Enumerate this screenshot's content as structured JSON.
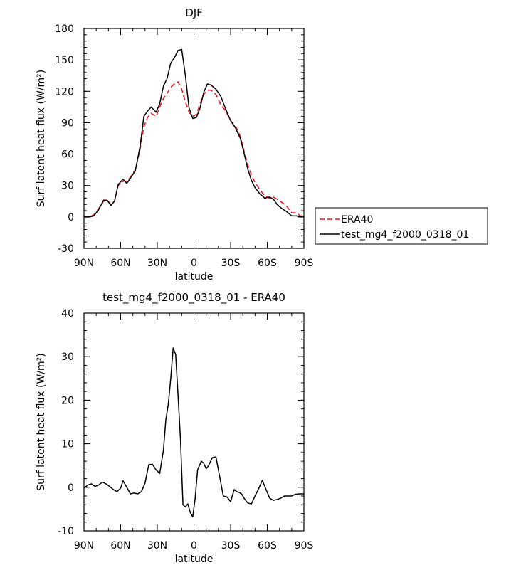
{
  "chart_data": [
    {
      "type": "line",
      "title": "DJF",
      "xlabel": "latitude",
      "ylabel": "Surf latent heat flux (W/m²)",
      "xlim": [
        90,
        -90
      ],
      "ylim": [
        -30,
        180
      ],
      "xticks": [
        {
          "v": 90,
          "l": "90N"
        },
        {
          "v": 60,
          "l": "60N"
        },
        {
          "v": 30,
          "l": "30N"
        },
        {
          "v": 0,
          "l": "0"
        },
        {
          "v": -30,
          "l": "30S"
        },
        {
          "v": -60,
          "l": "60S"
        },
        {
          "v": -90,
          "l": "90S"
        }
      ],
      "yticks": [
        -30,
        0,
        30,
        60,
        90,
        120,
        150,
        180
      ],
      "legend": [
        {
          "name": "ERA40",
          "series": 0
        },
        {
          "name": "test_mg4_f2000_0318_01",
          "series": 1
        }
      ],
      "series": [
        {
          "name": "ERA40",
          "color": "#e8141c",
          "dash": "7,4",
          "x": [
            90,
            86,
            82,
            78,
            74,
            71,
            68,
            65,
            62,
            58,
            55,
            52,
            48,
            44,
            41,
            38,
            35,
            31,
            28,
            25,
            22,
            19,
            16,
            13,
            10,
            7,
            4,
            1,
            -2,
            -5,
            -8,
            -11,
            -14,
            -18,
            -22,
            -26,
            -30,
            -34,
            -38,
            -41,
            -44,
            -47,
            -50,
            -54,
            -58,
            -62,
            -65,
            -68,
            -72,
            -76,
            -80,
            -84,
            -87,
            -90
          ],
          "y": [
            0,
            0,
            2,
            8,
            15,
            16,
            12,
            15,
            30,
            34,
            34,
            38,
            45,
            65,
            86,
            95,
            99,
            96,
            105,
            113,
            118,
            124,
            127,
            129,
            122,
            110,
            100,
            96,
            98,
            108,
            117,
            121,
            121,
            117,
            107,
            101,
            92,
            87,
            77,
            63,
            50,
            40,
            33,
            26,
            20,
            18,
            19,
            17,
            14,
            10,
            4,
            4,
            1,
            1
          ]
        },
        {
          "name": "test_mg4_f2000_0318_01",
          "color": "#000000",
          "dash": "",
          "x": [
            90,
            86,
            82,
            78,
            74,
            71,
            68,
            65,
            62,
            58,
            55,
            52,
            48,
            44,
            41,
            38,
            35,
            31,
            28,
            25,
            22,
            19,
            16,
            13,
            10,
            7,
            4,
            1,
            -2,
            -5,
            -8,
            -11,
            -14,
            -18,
            -22,
            -26,
            -30,
            -34,
            -38,
            -41,
            -44,
            -47,
            -50,
            -54,
            -58,
            -62,
            -65,
            -68,
            -72,
            -76,
            -80,
            -84,
            -87,
            -90
          ],
          "y": [
            0,
            0,
            1,
            7,
            16,
            16,
            11,
            15,
            31,
            36,
            32,
            37,
            44,
            68,
            96,
            101,
            105,
            100,
            108,
            125,
            132,
            147,
            152,
            159,
            160,
            135,
            104,
            94,
            95,
            104,
            119,
            127,
            126,
            122,
            115,
            103,
            92,
            85,
            75,
            61,
            46,
            35,
            28,
            22,
            18,
            19,
            17,
            12,
            8,
            5,
            1,
            1,
            0,
            0
          ]
        }
      ]
    },
    {
      "type": "line",
      "title": "test_mg4_f2000_0318_01 - ERA40",
      "xlabel": "latitude",
      "ylabel": "Surf latent heat flux (W/m²)",
      "xlim": [
        90,
        -90
      ],
      "ylim": [
        -10,
        40
      ],
      "xticks": [
        {
          "v": 90,
          "l": "90N"
        },
        {
          "v": 60,
          "l": "60N"
        },
        {
          "v": 30,
          "l": "30N"
        },
        {
          "v": 0,
          "l": "0"
        },
        {
          "v": -30,
          "l": "30S"
        },
        {
          "v": -60,
          "l": "60S"
        },
        {
          "v": -90,
          "l": "90S"
        }
      ],
      "yticks": [
        -10,
        0,
        10,
        20,
        30,
        40
      ],
      "legend": [],
      "series": [
        {
          "name": "",
          "color": "#000000",
          "dash": "",
          "x": [
            90,
            87,
            84,
            81,
            78,
            75,
            72,
            69,
            66,
            63,
            60,
            58,
            55,
            52,
            49,
            46,
            43,
            40,
            37,
            34,
            31,
            28,
            25,
            23,
            21,
            19,
            17,
            15,
            13,
            11,
            9,
            7,
            5,
            3,
            1,
            -1,
            -3,
            -6,
            -8,
            -10,
            -12,
            -15,
            -18,
            -21,
            -24,
            -27,
            -30,
            -33,
            -35,
            -37,
            -39,
            -41,
            -44,
            -47,
            -50,
            -53,
            -56,
            -59,
            -62,
            -65,
            -68,
            -71,
            -74,
            -77,
            -80,
            -83,
            -86,
            -90
          ],
          "y": [
            -0.2,
            0.5,
            0.8,
            0.2,
            0.5,
            1.2,
            0.8,
            0.2,
            -0.5,
            -1.0,
            -0.2,
            1.5,
            0.0,
            -1.5,
            -1.3,
            -1.5,
            -1.0,
            1.0,
            5.2,
            5.3,
            4.0,
            3.2,
            8.5,
            15.5,
            19.0,
            25.0,
            32.0,
            30.5,
            21.0,
            11.0,
            -4.0,
            -4.5,
            -3.8,
            -5.8,
            -6.8,
            -2.5,
            4.0,
            6.0,
            5.5,
            4.3,
            5.0,
            6.8,
            7.0,
            2.5,
            -2.0,
            -2.2,
            -3.3,
            -0.5,
            -1.0,
            -1.2,
            -1.5,
            -2.5,
            -3.6,
            -3.8,
            -2.0,
            -0.3,
            1.6,
            -0.5,
            -2.5,
            -3.0,
            -2.8,
            -2.5,
            -2.0,
            -2.0,
            -2.0,
            -1.6,
            -1.5,
            -1.5
          ]
        }
      ]
    }
  ]
}
